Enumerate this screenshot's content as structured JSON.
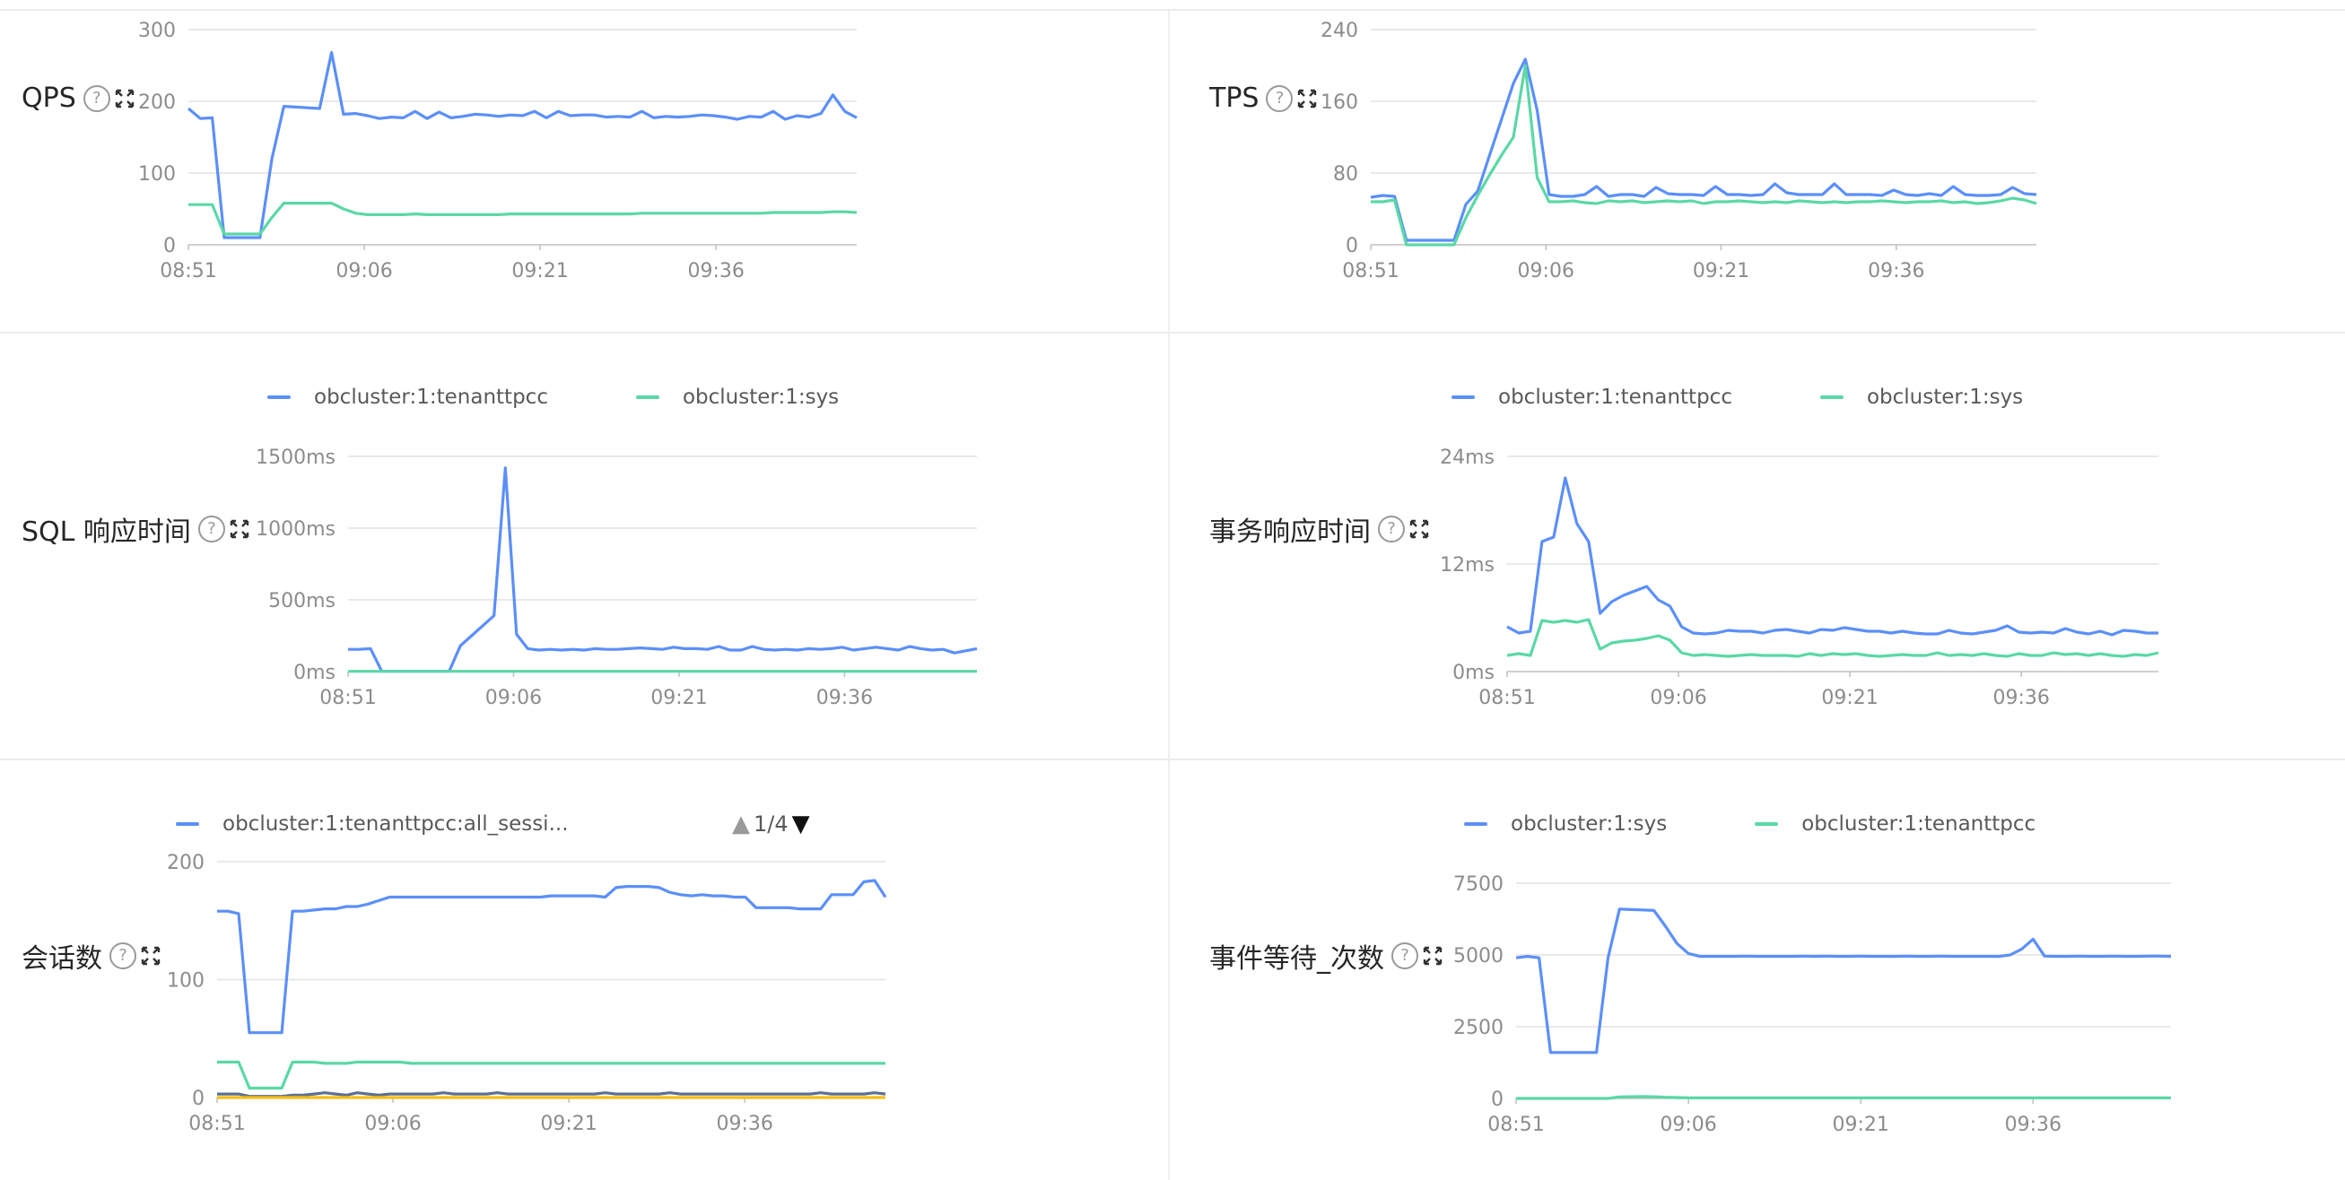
{
  "colors": {
    "blue": "#5b8ff9",
    "green": "#5ad8a6",
    "dark": "#5d7092",
    "yellow": "#f6bd16",
    "grid": "#e2e2e2",
    "axis": "#8c8c8c"
  },
  "icons": {
    "help": "question-circle-icon",
    "expand": "fullscreen-icon"
  },
  "panels": [
    {
      "title": "QPS",
      "legend": [],
      "pager": null
    },
    {
      "title": "TPS",
      "legend": [],
      "pager": null
    },
    {
      "title": "SQL 响应时间",
      "legend": [
        "obcluster:1:tenanttpcc",
        "obcluster:1:sys"
      ],
      "pager": null
    },
    {
      "title": "事务响应时间",
      "legend": [
        "obcluster:1:tenanttpcc",
        "obcluster:1:sys"
      ],
      "pager": null
    },
    {
      "title": "会话数",
      "legend": [
        "obcluster:1:tenanttpcc:all_sessi..."
      ],
      "pager": "1/4"
    },
    {
      "title": "事件等待_次数",
      "legend": [
        "obcluster:1:sys",
        "obcluster:1:tenanttpcc"
      ],
      "pager": null
    }
  ],
  "chart_data": [
    {
      "type": "line",
      "title": "QPS",
      "x_ticks": [
        "08:51",
        "09:06",
        "09:21",
        "09:36"
      ],
      "y_ticks": [
        "0",
        "100",
        "200",
        "300"
      ],
      "ylim": [
        0,
        300
      ],
      "grid": true,
      "series": [
        {
          "color": "#5b8ff9",
          "values": [
            190,
            176,
            177,
            10,
            10,
            10,
            10,
            120,
            193,
            192,
            191,
            190,
            268,
            182,
            183,
            180,
            176,
            178,
            177,
            186,
            176,
            185,
            177,
            179,
            182,
            181,
            179,
            181,
            180,
            186,
            177,
            186,
            180,
            181,
            181,
            178,
            179,
            178,
            186,
            177,
            179,
            178,
            179,
            181,
            180,
            178,
            175,
            179,
            178,
            186,
            175,
            180,
            178,
            183,
            209,
            186,
            177
          ]
        },
        {
          "color": "#5ad8a6",
          "values": [
            56,
            56,
            56,
            15,
            15,
            15,
            15,
            38,
            58,
            58,
            58,
            58,
            58,
            50,
            44,
            42,
            42,
            42,
            42,
            43,
            42,
            42,
            42,
            42,
            42,
            42,
            42,
            43,
            43,
            43,
            43,
            43,
            43,
            43,
            43,
            43,
            43,
            43,
            44,
            44,
            44,
            44,
            44,
            44,
            44,
            44,
            44,
            44,
            44,
            45,
            45,
            45,
            45,
            45,
            46,
            46,
            45
          ]
        }
      ]
    },
    {
      "type": "line",
      "title": "TPS",
      "x_ticks": [
        "08:51",
        "09:06",
        "09:21",
        "09:36"
      ],
      "y_ticks": [
        "0",
        "80",
        "160",
        "240"
      ],
      "ylim": [
        0,
        240
      ],
      "grid": true,
      "series": [
        {
          "color": "#5b8ff9",
          "values": [
            53,
            55,
            54,
            5,
            5,
            5,
            5,
            5,
            45,
            60,
            100,
            140,
            180,
            207,
            150,
            56,
            54,
            54,
            56,
            65,
            54,
            56,
            56,
            54,
            64,
            57,
            56,
            56,
            55,
            65,
            56,
            56,
            55,
            56,
            68,
            58,
            56,
            56,
            56,
            68,
            56,
            56,
            56,
            55,
            61,
            56,
            55,
            57,
            55,
            65,
            56,
            55,
            55,
            56,
            64,
            57,
            56
          ]
        },
        {
          "color": "#5ad8a6",
          "values": [
            48,
            48,
            50,
            0,
            0,
            0,
            0,
            0,
            30,
            55,
            78,
            100,
            120,
            200,
            75,
            48,
            48,
            49,
            47,
            46,
            49,
            48,
            49,
            47,
            48,
            49,
            48,
            49,
            46,
            48,
            48,
            49,
            48,
            47,
            48,
            47,
            49,
            48,
            47,
            48,
            47,
            48,
            48,
            49,
            48,
            47,
            48,
            48,
            49,
            47,
            48,
            46,
            47,
            49,
            52,
            50,
            46
          ]
        }
      ]
    },
    {
      "type": "line",
      "title": "SQL 响应时间",
      "x_ticks": [
        "08:51",
        "09:06",
        "09:21",
        "09:36"
      ],
      "y_ticks": [
        "0ms",
        "500ms",
        "1000ms",
        "1500ms"
      ],
      "ylim": [
        0,
        1500
      ],
      "grid": true,
      "legend": [
        "obcluster:1:tenanttpcc",
        "obcluster:1:sys"
      ],
      "legend_position": "top",
      "series": [
        {
          "name": "obcluster:1:tenanttpcc",
          "color": "#5b8ff9",
          "values": [
            155,
            155,
            160,
            2,
            2,
            2,
            2,
            2,
            2,
            2,
            180,
            250,
            320,
            390,
            1420,
            260,
            160,
            150,
            155,
            150,
            155,
            150,
            160,
            155,
            155,
            160,
            165,
            160,
            155,
            170,
            160,
            160,
            155,
            175,
            150,
            150,
            175,
            155,
            150,
            155,
            150,
            160,
            155,
            160,
            170,
            150,
            160,
            170,
            160,
            150,
            175,
            160,
            150,
            155,
            130,
            145,
            160
          ]
        },
        {
          "name": "obcluster:1:sys",
          "color": "#5ad8a6",
          "values": [
            2,
            2,
            2,
            2,
            2,
            2,
            2,
            2,
            2,
            2,
            2,
            2,
            2,
            2,
            2,
            2,
            2,
            2,
            2,
            2,
            2,
            2,
            2,
            2,
            2,
            2,
            2,
            2,
            2,
            2,
            2,
            2,
            2,
            2,
            2,
            2,
            2,
            2,
            2,
            2,
            2,
            2,
            2,
            2,
            2,
            2,
            2,
            2,
            2,
            2,
            2,
            2,
            2,
            2,
            2,
            2,
            2
          ]
        }
      ]
    },
    {
      "type": "line",
      "title": "事务响应时间",
      "x_ticks": [
        "08:51",
        "09:06",
        "09:21",
        "09:36"
      ],
      "y_ticks": [
        "0ms",
        "12ms",
        "24ms"
      ],
      "ylim": [
        0,
        24
      ],
      "grid": true,
      "legend": [
        "obcluster:1:tenanttpcc",
        "obcluster:1:sys"
      ],
      "legend_position": "top",
      "series": [
        {
          "name": "obcluster:1:tenanttpcc",
          "color": "#5b8ff9",
          "values": [
            5,
            4.3,
            4.5,
            14.5,
            15,
            21.6,
            16.5,
            14.5,
            6.5,
            7.8,
            8.5,
            9,
            9.5,
            8,
            7.3,
            5,
            4.3,
            4.2,
            4.3,
            4.6,
            4.5,
            4.5,
            4.3,
            4.6,
            4.7,
            4.5,
            4.3,
            4.7,
            4.6,
            4.9,
            4.7,
            4.5,
            4.5,
            4.3,
            4.5,
            4.3,
            4.2,
            4.2,
            4.6,
            4.3,
            4.2,
            4.4,
            4.6,
            5.1,
            4.4,
            4.3,
            4.4,
            4.3,
            4.8,
            4.4,
            4.2,
            4.5,
            4.1,
            4.6,
            4.5,
            4.3,
            4.3
          ]
        },
        {
          "name": "obcluster:1:sys",
          "color": "#5ad8a6",
          "values": [
            1.8,
            2,
            1.8,
            5.7,
            5.5,
            5.7,
            5.5,
            5.8,
            2.5,
            3.2,
            3.4,
            3.5,
            3.7,
            4,
            3.5,
            2.1,
            1.8,
            1.9,
            1.8,
            1.7,
            1.8,
            1.9,
            1.8,
            1.8,
            1.8,
            1.7,
            2,
            1.8,
            2,
            1.9,
            2,
            1.8,
            1.7,
            1.8,
            1.9,
            1.8,
            1.8,
            2.1,
            1.8,
            1.9,
            1.8,
            2,
            1.8,
            1.7,
            2,
            1.8,
            1.8,
            2.1,
            1.9,
            2,
            1.8,
            2,
            1.8,
            1.7,
            1.9,
            1.8,
            2.1
          ]
        }
      ]
    },
    {
      "type": "line",
      "title": "会话数",
      "x_ticks": [
        "08:51",
        "09:06",
        "09:21",
        "09:36"
      ],
      "y_ticks": [
        "0",
        "100",
        "200"
      ],
      "ylim": [
        0,
        200
      ],
      "grid": true,
      "legend": [
        "obcluster:1:tenanttpcc:all_sessi..."
      ],
      "legend_position": "top",
      "legend_page": "1/4",
      "series": [
        {
          "name": "obcluster:1:tenanttpcc:all_sessi...",
          "color": "#5b8ff9",
          "values": [
            158,
            158,
            156,
            55,
            55,
            55,
            55,
            158,
            158,
            159,
            160,
            160,
            162,
            162,
            164,
            167,
            170,
            170,
            170,
            170,
            170,
            170,
            170,
            170,
            170,
            170,
            170,
            170,
            170,
            170,
            170,
            171,
            171,
            171,
            171,
            171,
            170,
            178,
            179,
            179,
            179,
            178,
            174,
            172,
            171,
            172,
            171,
            171,
            170,
            170,
            161,
            161,
            161,
            161,
            160,
            160,
            160,
            172,
            172,
            172,
            183,
            184,
            170
          ]
        },
        {
          "color": "#5ad8a6",
          "values": [
            30,
            30,
            30,
            8,
            8,
            8,
            8,
            30,
            30,
            30,
            29,
            29,
            29,
            30,
            30,
            30,
            30,
            30,
            29,
            29,
            29,
            29,
            29,
            29,
            29,
            29,
            29,
            29,
            29,
            29,
            29,
            29,
            29,
            29,
            29,
            29,
            29,
            29,
            29,
            29,
            29,
            29,
            29,
            29,
            29,
            29,
            29,
            29,
            29,
            29,
            29,
            29,
            29,
            29,
            29,
            29,
            29,
            29,
            29,
            29,
            29,
            29,
            29
          ]
        },
        {
          "color": "#5d7092",
          "values": [
            3,
            3,
            3,
            1,
            1,
            1,
            1,
            2,
            2,
            3,
            4,
            3,
            2,
            4,
            3,
            2,
            3,
            3,
            3,
            3,
            3,
            4,
            3,
            3,
            3,
            3,
            4,
            3,
            3,
            3,
            3,
            3,
            3,
            3,
            3,
            3,
            4,
            3,
            3,
            3,
            3,
            3,
            4,
            3,
            3,
            3,
            3,
            3,
            3,
            3,
            3,
            3,
            3,
            3,
            3,
            3,
            4,
            3,
            3,
            3,
            3,
            4,
            3
          ]
        },
        {
          "color": "#f6bd16",
          "values": [
            0,
            0,
            0,
            0,
            0,
            0,
            0,
            0,
            0,
            0,
            0,
            0,
            0,
            0,
            0,
            0,
            0,
            0,
            0,
            0,
            0,
            0,
            0,
            0,
            0,
            0,
            0,
            0,
            0,
            0,
            0,
            0,
            0,
            0,
            0,
            0,
            0,
            0,
            0,
            0,
            0,
            0,
            0,
            0,
            0,
            0,
            0,
            0,
            0,
            0,
            0,
            0,
            0,
            0,
            0,
            0,
            0,
            0,
            0,
            0,
            0,
            0,
            0
          ]
        }
      ]
    },
    {
      "type": "line",
      "title": "事件等待_次数",
      "x_ticks": [
        "08:51",
        "09:06",
        "09:21",
        "09:36"
      ],
      "y_ticks": [
        "0",
        "2500",
        "5000",
        "7500"
      ],
      "ylim": [
        0,
        7500
      ],
      "grid": true,
      "legend": [
        "obcluster:1:sys",
        "obcluster:1:tenanttpcc"
      ],
      "legend_position": "top",
      "series": [
        {
          "name": "obcluster:1:sys",
          "color": "#5b8ff9",
          "values": [
            4900,
            4950,
            4900,
            1600,
            1600,
            1600,
            1600,
            1600,
            4900,
            6600,
            6580,
            6570,
            6550,
            6000,
            5400,
            5050,
            4950,
            4950,
            4950,
            4950,
            4960,
            4950,
            4950,
            4950,
            4950,
            4960,
            4950,
            4960,
            4950,
            4950,
            4960,
            4950,
            4950,
            4950,
            4960,
            4950,
            4950,
            4960,
            4950,
            4950,
            4950,
            4950,
            4950,
            5000,
            5200,
            5550,
            4960,
            4950,
            4950,
            4960,
            4950,
            4950,
            4960,
            4950,
            4950,
            4960,
            4960,
            4950
          ]
        },
        {
          "name": "obcluster:1:tenanttpcc",
          "color": "#5ad8a6",
          "values": [
            0,
            0,
            0,
            0,
            0,
            0,
            0,
            0,
            0,
            50,
            60,
            70,
            60,
            40,
            30,
            20,
            20,
            20,
            20,
            20,
            20,
            20,
            20,
            20,
            20,
            20,
            20,
            20,
            20,
            20,
            20,
            20,
            20,
            20,
            20,
            20,
            20,
            20,
            20,
            20,
            20,
            20,
            20,
            20,
            20,
            20,
            20,
            20,
            20,
            20,
            20,
            20,
            20,
            20,
            20,
            20,
            20,
            20
          ]
        }
      ]
    }
  ]
}
